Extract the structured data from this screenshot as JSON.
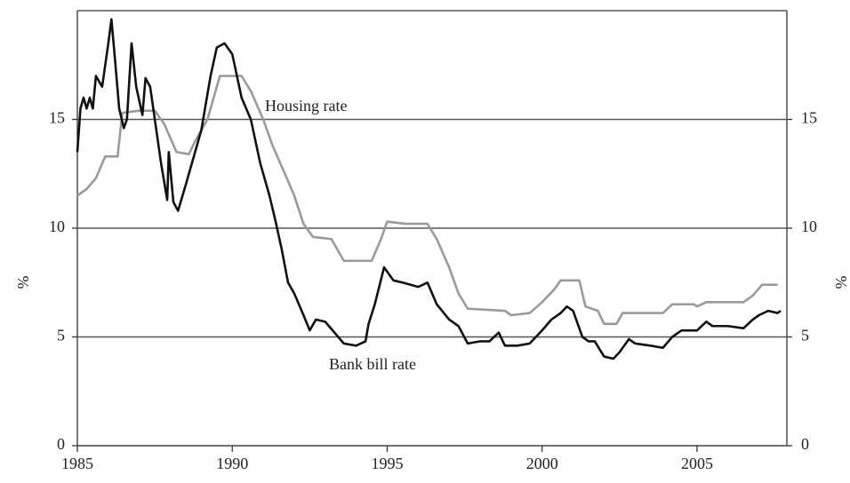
{
  "chart_data": {
    "type": "line",
    "ylabel": "%",
    "y2label": "%",
    "xlim": [
      1985,
      2007.9
    ],
    "xticks": [
      1985,
      1990,
      1995,
      2000,
      2005
    ],
    "ylim": [
      0,
      20
    ],
    "yticks": [
      0,
      5,
      10,
      15
    ],
    "y2lim": [
      0,
      20
    ],
    "y2ticks": [
      0,
      5,
      10,
      15
    ],
    "grid": true,
    "series": [
      {
        "name": "Housing rate",
        "color": "#9a9a9a",
        "x": [
          1985.0,
          1985.3,
          1985.6,
          1985.9,
          1986.3,
          1986.45,
          1987.0,
          1987.5,
          1987.8,
          1988.2,
          1988.6,
          1988.8,
          1989.2,
          1989.4,
          1989.6,
          1990.3,
          1990.6,
          1991.0,
          1991.3,
          1991.7,
          1992.0,
          1992.3,
          1992.6,
          1993.2,
          1993.6,
          1994.5,
          1994.8,
          1995.0,
          1995.6,
          1996.3,
          1996.6,
          1997.0,
          1997.3,
          1997.6,
          1998.8,
          1999.0,
          1999.6,
          2000.0,
          2000.4,
          2000.6,
          2001.2,
          2001.4,
          2001.8,
          2002.0,
          2002.4,
          2002.6,
          2003.9,
          2004.2,
          2004.9,
          2005.0,
          2005.3,
          2006.5,
          2006.8,
          2007.1,
          2007.6
        ],
        "values": [
          11.5,
          11.8,
          12.3,
          13.3,
          13.3,
          15.3,
          15.4,
          15.4,
          14.8,
          13.5,
          13.4,
          14.0,
          15.0,
          16.0,
          17.0,
          17.0,
          16.3,
          15.0,
          13.8,
          12.5,
          11.5,
          10.2,
          9.6,
          9.5,
          8.5,
          8.5,
          9.5,
          10.3,
          10.2,
          10.2,
          9.5,
          8.2,
          7.0,
          6.3,
          6.2,
          6.0,
          6.1,
          6.6,
          7.2,
          7.6,
          7.6,
          6.4,
          6.2,
          5.6,
          5.6,
          6.1,
          6.1,
          6.5,
          6.5,
          6.4,
          6.6,
          6.6,
          6.9,
          7.4,
          7.4
        ]
      },
      {
        "name": "Bank bill rate",
        "color": "#111111",
        "x": [
          1985.0,
          1985.1,
          1985.2,
          1985.3,
          1985.4,
          1985.5,
          1985.6,
          1985.8,
          1986.0,
          1986.1,
          1986.2,
          1986.35,
          1986.5,
          1986.6,
          1986.75,
          1986.9,
          1987.1,
          1987.2,
          1987.35,
          1987.5,
          1987.7,
          1987.9,
          1987.95,
          1988.1,
          1988.25,
          1988.5,
          1988.7,
          1989.0,
          1989.3,
          1989.5,
          1989.75,
          1990.0,
          1990.3,
          1990.6,
          1990.9,
          1991.2,
          1991.4,
          1991.6,
          1991.8,
          1992.0,
          1992.3,
          1992.5,
          1992.7,
          1993.0,
          1993.3,
          1993.6,
          1994.0,
          1994.3,
          1994.4,
          1994.6,
          1994.9,
          1995.2,
          1995.5,
          1996.0,
          1996.3,
          1996.6,
          1997.0,
          1997.3,
          1997.6,
          1998.0,
          1998.3,
          1998.6,
          1998.8,
          1999.2,
          1999.6,
          2000.0,
          2000.3,
          2000.6,
          2000.8,
          2001.0,
          2001.3,
          2001.5,
          2001.7,
          2002.0,
          2002.3,
          2002.5,
          2002.8,
          2003.0,
          2003.5,
          2003.9,
          2004.2,
          2004.5,
          2005.0,
          2005.3,
          2005.5,
          2006.0,
          2006.5,
          2006.8,
          2007.0,
          2007.3,
          2007.6,
          2007.7
        ],
        "values": [
          13.5,
          15.5,
          16.0,
          15.5,
          16.0,
          15.5,
          17.0,
          16.5,
          18.5,
          19.6,
          18.0,
          15.5,
          14.6,
          15.0,
          18.5,
          16.5,
          15.2,
          16.9,
          16.5,
          15.0,
          13.0,
          11.3,
          13.5,
          11.2,
          10.8,
          12.0,
          13.0,
          14.5,
          17.0,
          18.3,
          18.5,
          18.0,
          16.0,
          15.0,
          13.0,
          11.5,
          10.3,
          9.0,
          7.5,
          7.0,
          6.0,
          5.3,
          5.8,
          5.7,
          5.2,
          4.7,
          4.6,
          4.8,
          5.6,
          6.5,
          8.2,
          7.6,
          7.5,
          7.3,
          7.5,
          6.5,
          5.8,
          5.5,
          4.7,
          4.8,
          4.8,
          5.2,
          4.6,
          4.6,
          4.7,
          5.3,
          5.8,
          6.1,
          6.4,
          6.2,
          5.0,
          4.8,
          4.8,
          4.1,
          4.0,
          4.3,
          4.9,
          4.7,
          4.6,
          4.5,
          5.0,
          5.3,
          5.3,
          5.7,
          5.5,
          5.5,
          5.4,
          5.8,
          6.0,
          6.2,
          6.1,
          6.2
        ]
      }
    ]
  }
}
